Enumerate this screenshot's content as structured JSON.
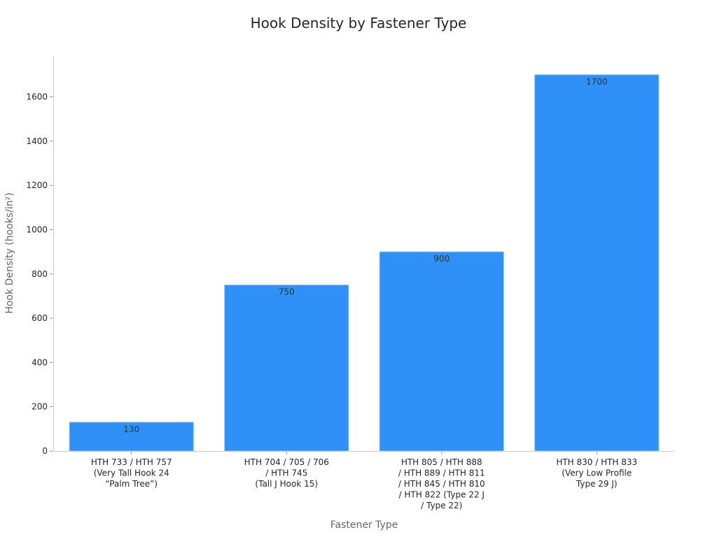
{
  "chart_data": {
    "type": "bar",
    "title": "Hook Density by Fastener Type",
    "xlabel": "Fastener Type",
    "ylabel": "Hook Density (hooks/in²)",
    "categories": [
      "HTH 733 / HTH 757\n(Very Tall Hook 24\n“Palm Tree”)",
      "HTH 704 / 705 / 706\n/ HTH 745\n(Tall J Hook 15)",
      "HTH 805 / HTH 888\n/ HTH 889 / HTH 811\n/ HTH 845 / HTH 810\n/ HTH 822 (Type 22 J\n/ Type 22)",
      "HTH 830 / HTH 833\n(Very Low Profile\nType 29 J)"
    ],
    "values": [
      130,
      750,
      900,
      1700
    ],
    "data_labels": [
      "130",
      "750",
      "900",
      "1700"
    ],
    "yticks": [
      0,
      200,
      400,
      600,
      800,
      1000,
      1200,
      1400,
      1600
    ],
    "ylim": [
      0,
      1785
    ],
    "grid": false,
    "legend": "none",
    "colors": {
      "bar": "#2f91f7",
      "bar_edge": "#8cc2fb",
      "axis": "#cccccc"
    }
  }
}
